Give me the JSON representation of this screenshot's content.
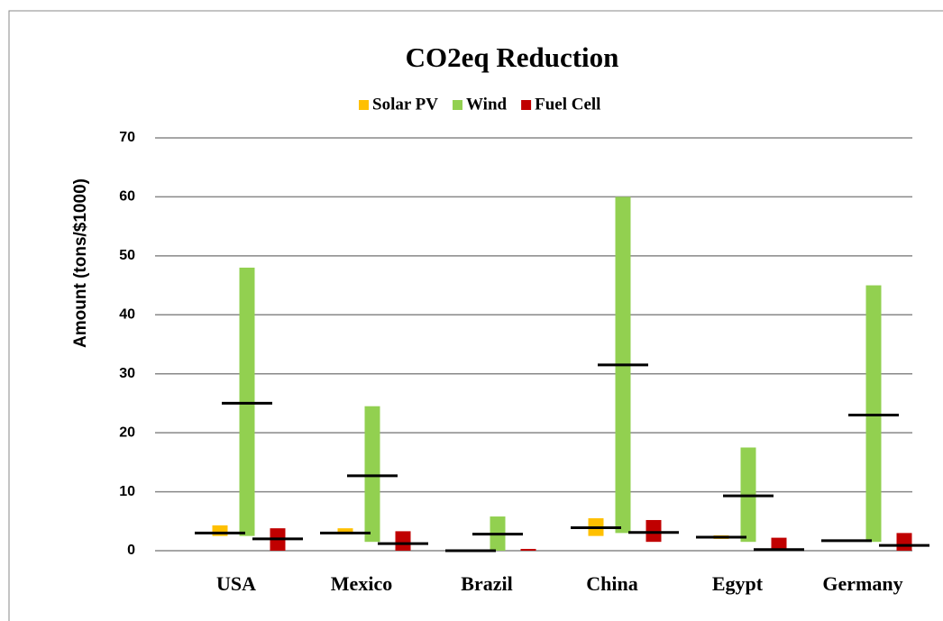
{
  "chart_data": {
    "type": "floating-bar",
    "title": "CO2eq Reduction",
    "y_label": "Amount (tons/$1000)",
    "categories": [
      "USA",
      "Mexico",
      "Brazil",
      "China",
      "Egypt",
      "Germany"
    ],
    "series": [
      {
        "name": "Solar PV",
        "color": "#ffc000",
        "low": [
          2.5,
          2.8,
          0,
          2.5,
          2.0,
          1.6
        ],
        "high": [
          4.3,
          3.8,
          0.1,
          5.5,
          2.6,
          1.8
        ],
        "mean": [
          3.0,
          3.0,
          0,
          3.9,
          2.3,
          1.7
        ]
      },
      {
        "name": "Wind",
        "color": "#92d050",
        "low": [
          2.5,
          1.5,
          0,
          3.0,
          1.5,
          1.5
        ],
        "high": [
          48,
          24.5,
          5.8,
          60,
          17.5,
          45
        ],
        "mean": [
          25,
          12.7,
          2.8,
          31.5,
          9.3,
          23
        ]
      },
      {
        "name": "Fuel Cell",
        "color": "#c00000",
        "low": [
          0,
          0,
          0,
          1.5,
          0,
          0
        ],
        "high": [
          3.8,
          3.3,
          0.3,
          5.2,
          2.2,
          3.0
        ],
        "mean": [
          2.0,
          1.2,
          null,
          3.1,
          0.2,
          0.9
        ]
      }
    ],
    "ylim": [
      0,
      70
    ],
    "yticks": [
      0,
      10,
      20,
      30,
      40,
      50,
      60,
      70
    ],
    "grid": true
  }
}
